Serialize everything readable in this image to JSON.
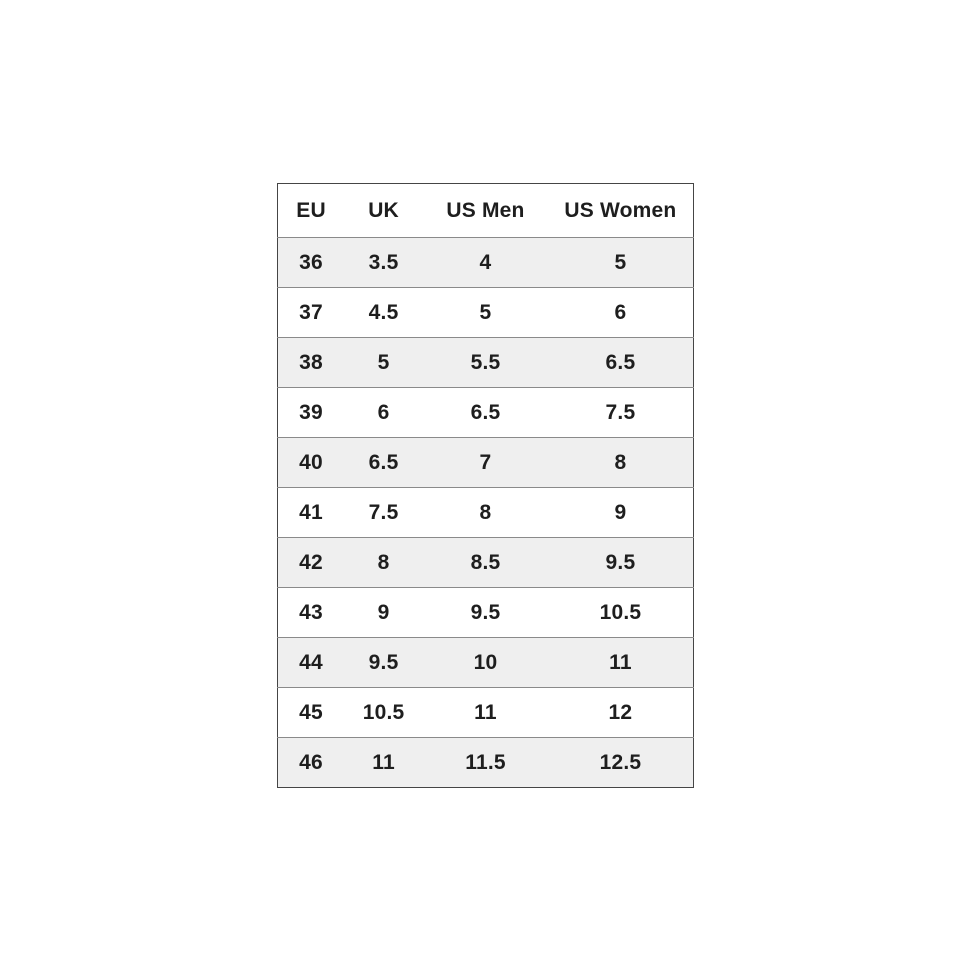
{
  "chart_data": {
    "type": "table",
    "columns": [
      "EU",
      "UK",
      "US Men",
      "US Women"
    ],
    "rows": [
      [
        "36",
        "3.5",
        "4",
        "5"
      ],
      [
        "37",
        "4.5",
        "5",
        "6"
      ],
      [
        "38",
        "5",
        "5.5",
        "6.5"
      ],
      [
        "39",
        "6",
        "6.5",
        "7.5"
      ],
      [
        "40",
        "6.5",
        "7",
        "8"
      ],
      [
        "41",
        "7.5",
        "8",
        "9"
      ],
      [
        "42",
        "8",
        "8.5",
        "9.5"
      ],
      [
        "43",
        "9",
        "9.5",
        "10.5"
      ],
      [
        "44",
        "9.5",
        "10",
        "11"
      ],
      [
        "45",
        "10.5",
        "11",
        "12"
      ],
      [
        "46",
        "11",
        "11.5",
        "12.5"
      ]
    ]
  },
  "colors": {
    "page_bg": "#ffffff",
    "row_bg": "#ffffff",
    "row_alt_bg": "#efefef",
    "row_separator": "#8a8a8a",
    "outer_border": "#454545",
    "text": "#1e1e1e"
  }
}
